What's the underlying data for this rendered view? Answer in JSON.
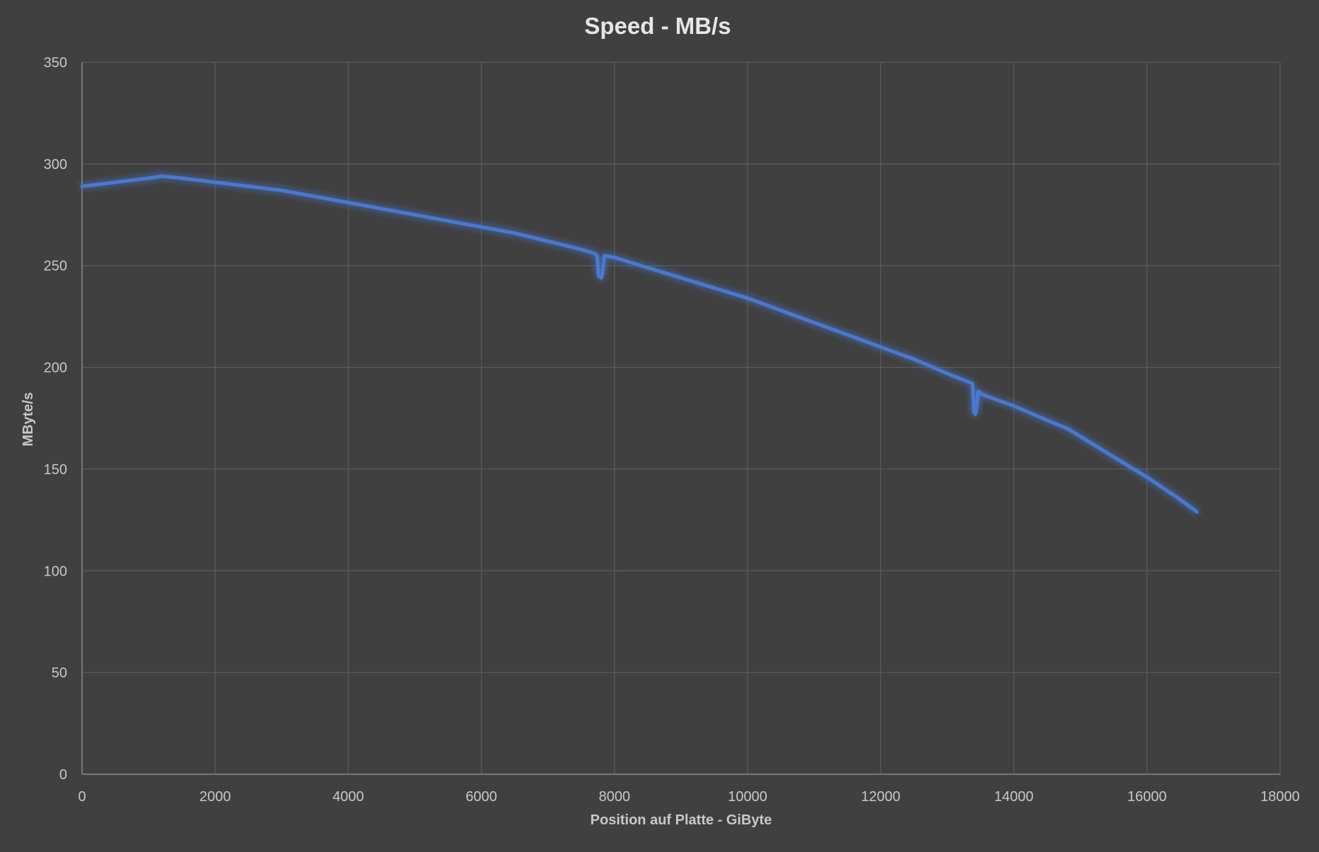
{
  "chart_data": {
    "type": "line",
    "title": "Speed - MB/s",
    "xlabel": "Position auf Platte - GiByte",
    "ylabel": "MByte/s",
    "xlim": [
      0,
      18000
    ],
    "ylim": [
      0,
      350
    ],
    "x_ticks": [
      0,
      2000,
      4000,
      6000,
      8000,
      10000,
      12000,
      14000,
      16000,
      18000
    ],
    "y_ticks": [
      0,
      50,
      100,
      150,
      200,
      250,
      300,
      350
    ],
    "grid": true,
    "legend": "none",
    "series": [
      {
        "color": "#4a78d0",
        "x": [
          0,
          500,
          1000,
          1200,
          1500,
          2000,
          2500,
          3000,
          3500,
          4000,
          4500,
          5000,
          5500,
          6000,
          6500,
          7000,
          7500,
          7700,
          7740,
          7760,
          7800,
          7820,
          7850,
          8000,
          8500,
          9000,
          9500,
          10000,
          10500,
          11000,
          11500,
          12000,
          12500,
          13000,
          13380,
          13400,
          13420,
          13440,
          13460,
          13480,
          13500,
          14000,
          14500,
          14800,
          15000,
          15500,
          16000,
          16500,
          16750
        ],
        "y": [
          289,
          291,
          293,
          294,
          293,
          291,
          289,
          287,
          284,
          281,
          278,
          275,
          272,
          269,
          266,
          262,
          258,
          256,
          255,
          245,
          244,
          246,
          255,
          254,
          249,
          244,
          239,
          234,
          228,
          222,
          216,
          210,
          204,
          197,
          192,
          178,
          177,
          180,
          188,
          188,
          187,
          181,
          174,
          170,
          166,
          156,
          146,
          135,
          129
        ]
      }
    ]
  }
}
